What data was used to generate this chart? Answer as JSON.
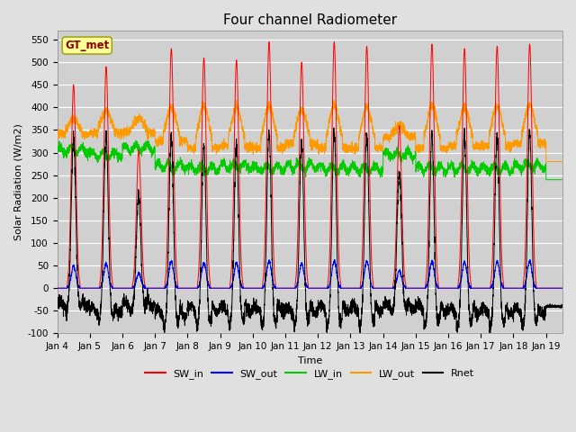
{
  "title": "Four channel Radiometer",
  "xlabel": "Time",
  "ylabel": "Solar Radiation (W/m2)",
  "ylim": [
    -100,
    570
  ],
  "yticks": [
    -100,
    -50,
    0,
    50,
    100,
    150,
    200,
    250,
    300,
    350,
    400,
    450,
    500,
    550
  ],
  "n_days": 15.5,
  "n_points_per_day": 288,
  "legend_labels": [
    "SW_in",
    "SW_out",
    "LW_in",
    "LW_out",
    "Rnet"
  ],
  "legend_colors": [
    "#ff0000",
    "#0000ff",
    "#00cc00",
    "#ff9900",
    "#000000"
  ],
  "station_label": "GT_met",
  "station_label_color": "#8b0000",
  "station_box_facecolor": "#ffff99",
  "station_box_edgecolor": "#999900",
  "background_color": "#e0e0e0",
  "plot_bg_color": "#d0d0d0",
  "grid_color": "#ffffff",
  "title_fontsize": 11,
  "label_fontsize": 8,
  "tick_fontsize": 7.5,
  "legend_fontsize": 8
}
